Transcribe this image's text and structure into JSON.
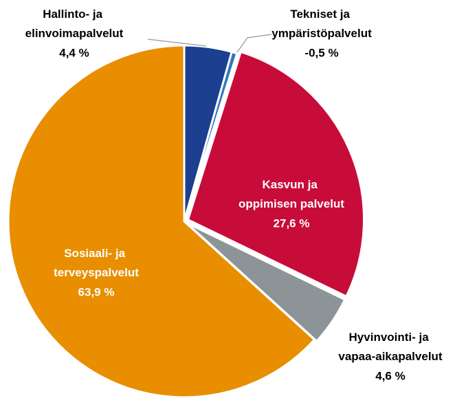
{
  "chart_data": {
    "type": "pie",
    "categories": [
      "Hallinto- ja elinvoimapalvelut",
      "Tekniset ja ympäristöpalvelut",
      "Kasvun ja oppimisen palvelut",
      "Hyvinvointi- ja vapaa-aikapalvelut",
      "Sosiaali- ja terveyspalvelut"
    ],
    "values": [
      4.4,
      -0.5,
      27.6,
      4.6,
      63.9
    ],
    "value_labels": [
      "4,4 %",
      "-0,5 %",
      "27,6 %",
      "4,6 %",
      "63,9 %"
    ],
    "colors": [
      "#1c3f8f",
      "#2e78b8",
      "#c80c3a",
      "#8d9497",
      "#e88e00"
    ]
  }
}
